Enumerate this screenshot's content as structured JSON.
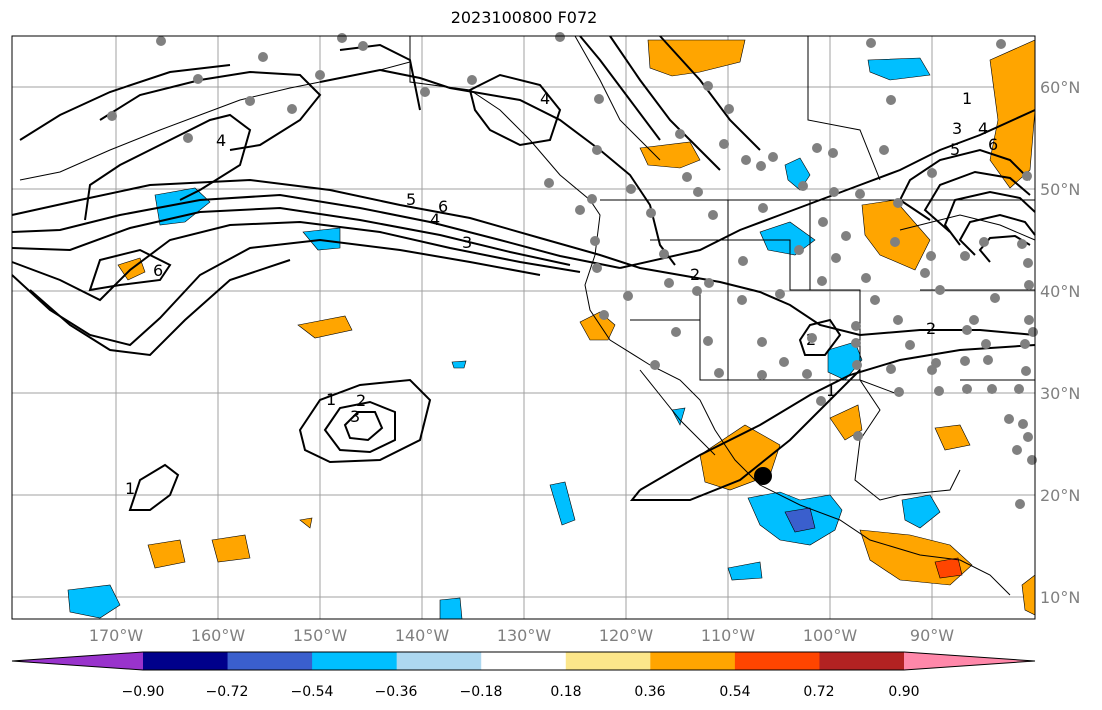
{
  "title": "2023100800 F072",
  "lat_labels": [
    "60°N",
    "50°N",
    "40°N",
    "30°N",
    "20°N",
    "10°N"
  ],
  "lon_labels": [
    "170°W",
    "160°W",
    "150°W",
    "140°W",
    "130°W",
    "120°W",
    "110°W",
    "100°W",
    "90°W"
  ],
  "colorbar": {
    "colors": [
      "#9933cc",
      "#00008b",
      "#3a5fcd",
      "#00bfff",
      "#add8f0",
      "#ffffff",
      "#fce68a",
      "#ffa500",
      "#ff4500",
      "#b22222",
      "#ff88aa"
    ],
    "tick_labels": [
      "−0.90",
      "−0.72",
      "−0.54",
      "−0.36",
      "−0.18",
      "0.18",
      "0.36",
      "0.54",
      "0.72",
      "0.90"
    ]
  },
  "contour_labels": [
    "1",
    "2",
    "3",
    "4",
    "5",
    "6"
  ],
  "colors": {
    "grid": "#a0a0a0",
    "contour": "#000000",
    "station": "#808080",
    "orange": "#ffa500",
    "blue": "#00bfff"
  }
}
